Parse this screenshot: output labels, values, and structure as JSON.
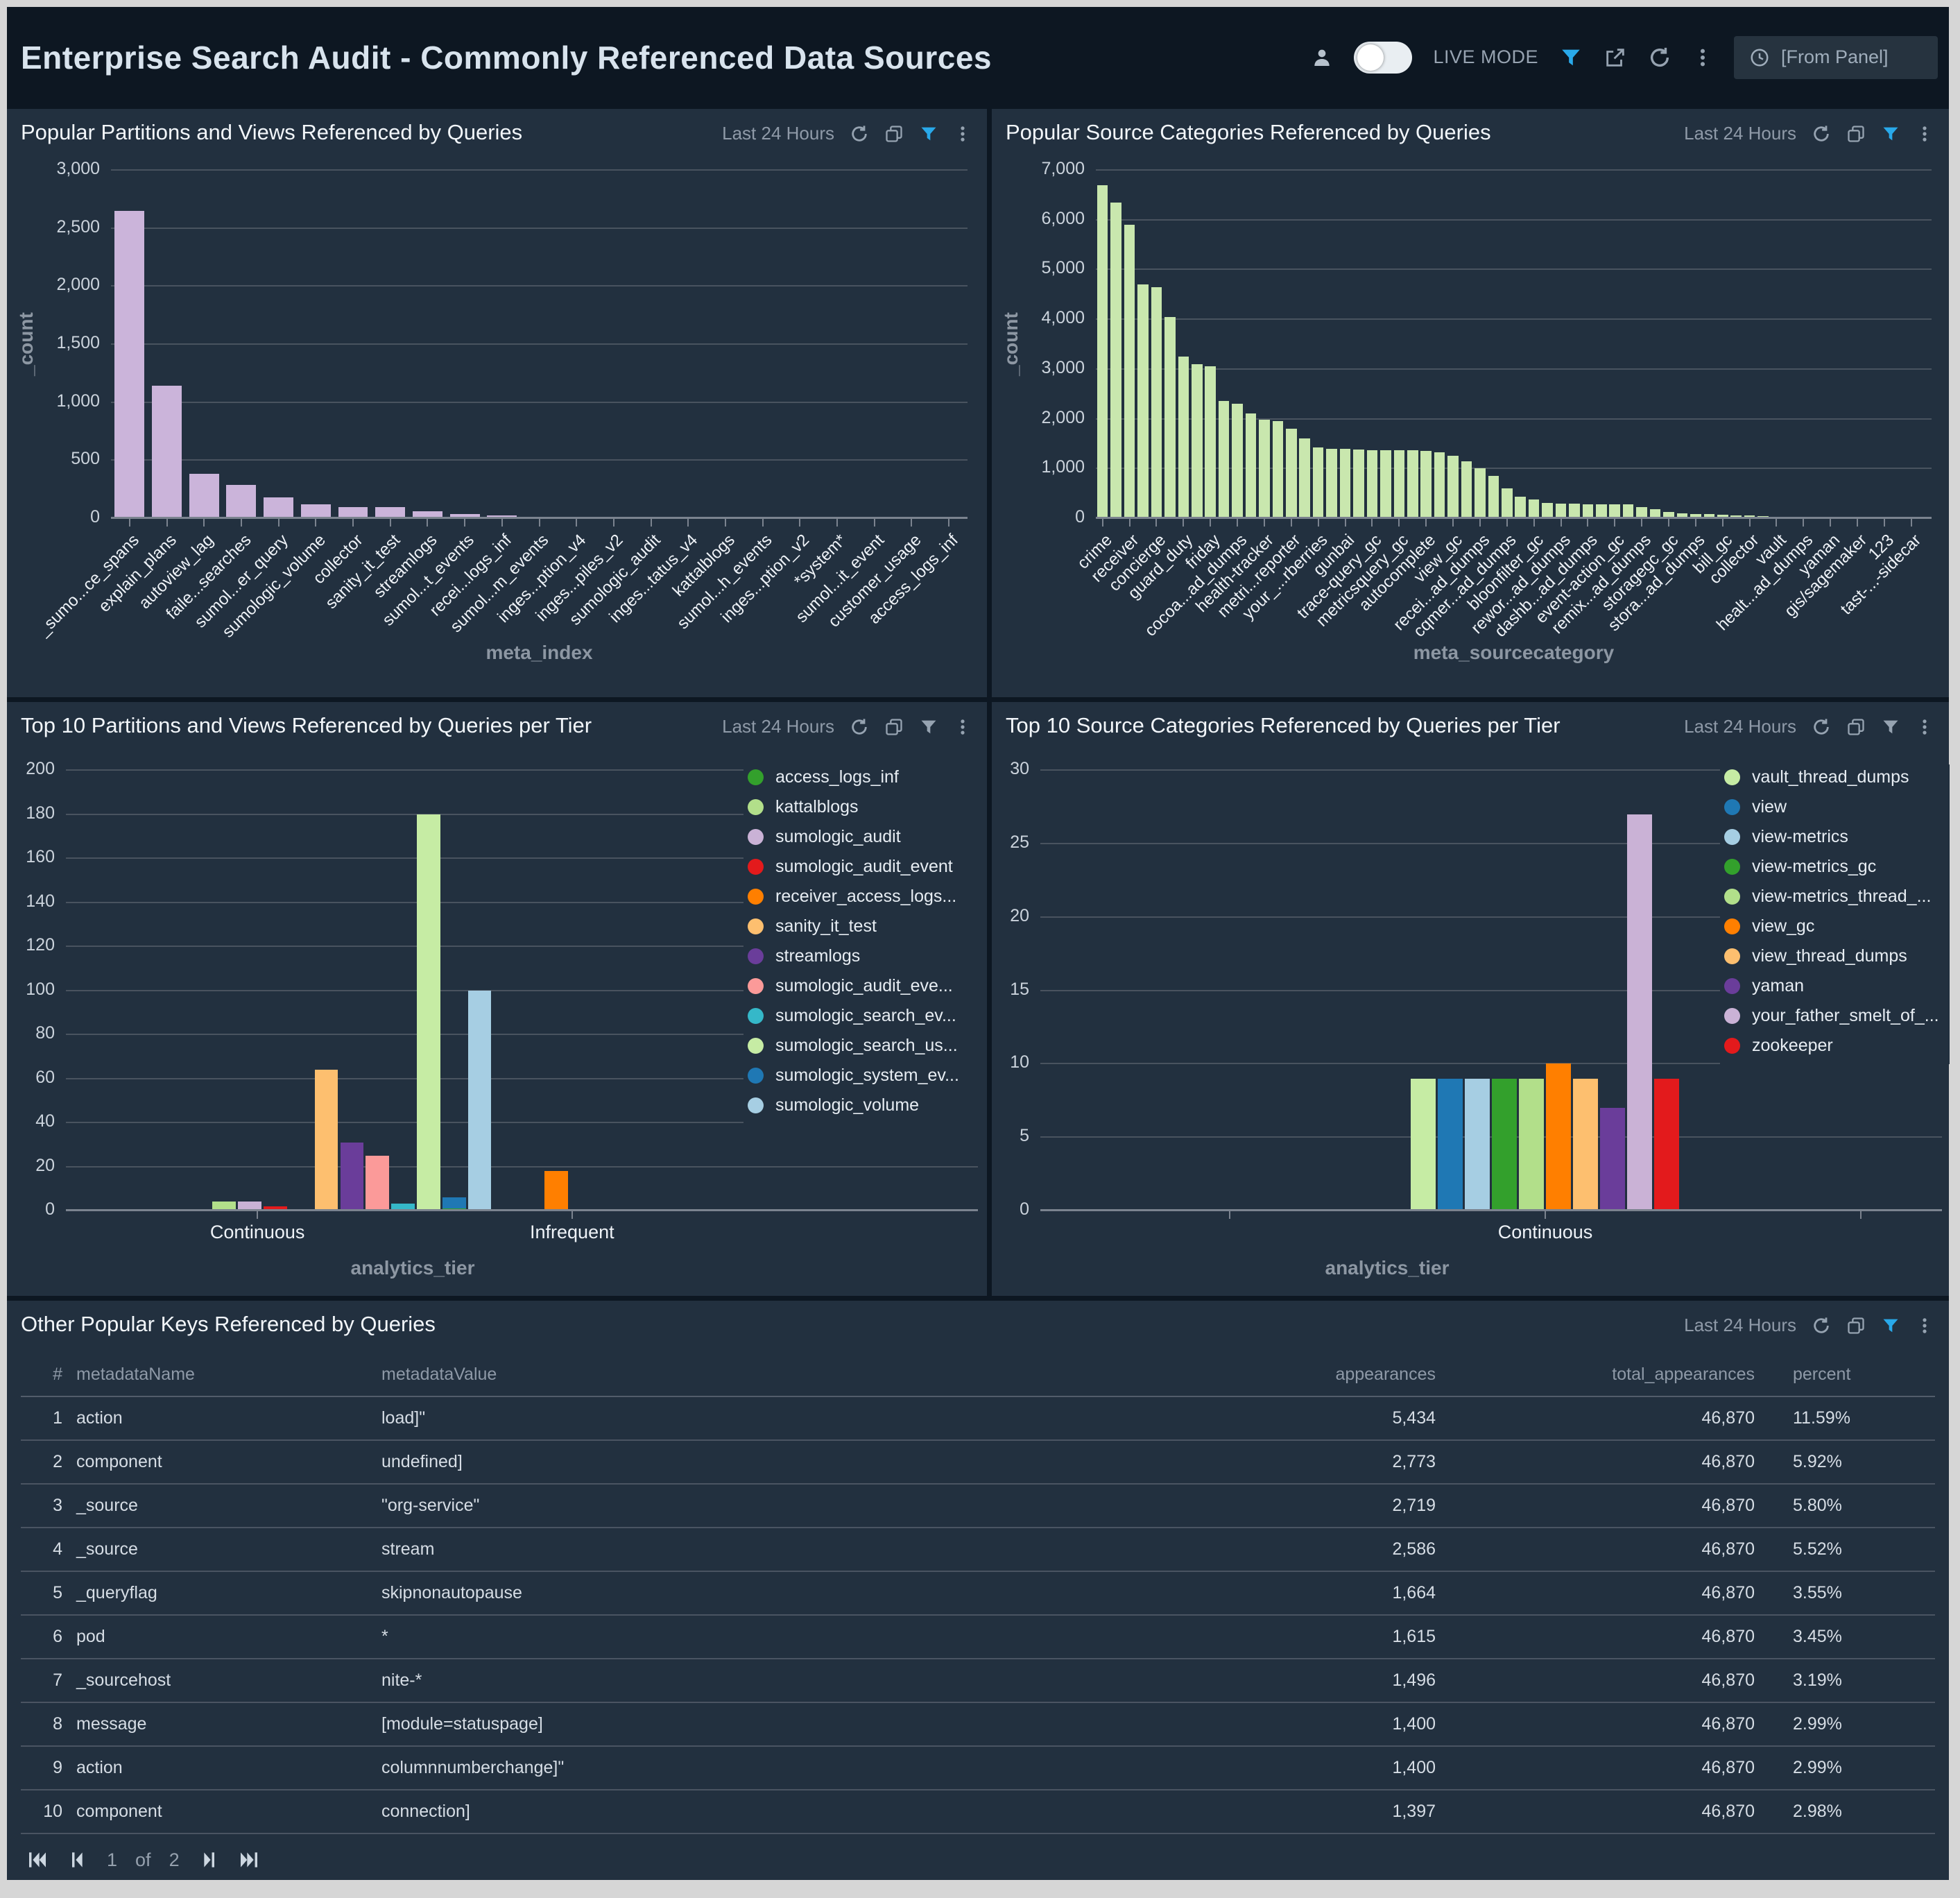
{
  "header": {
    "title": "Enterprise Search Audit - Commonly Referenced Data Sources",
    "live_mode_label": "LIVE MODE",
    "time_range_value": "[From Panel]"
  },
  "panels": {
    "popular_partitions": {
      "title": "Popular Partitions and Views Referenced by Queries",
      "time_range": "Last 24 Hours"
    },
    "popular_source_categories": {
      "title": "Popular Source Categories Referenced by Queries",
      "time_range": "Last 24 Hours"
    },
    "top10_partitions": {
      "title": "Top 10 Partitions and Views Referenced by Queries per Tier",
      "time_range": "Last 24 Hours"
    },
    "top10_source_categories": {
      "title": "Top 10 Source Categories Referenced by Queries per Tier",
      "time_range": "Last 24 Hours"
    },
    "other_keys": {
      "title": "Other Popular Keys Referenced by Queries",
      "time_range": "Last 24 Hours"
    }
  },
  "chart_data": [
    {
      "type": "bar",
      "title": "Popular Partitions and Views Referenced by Queries",
      "xlabel": "meta_index",
      "ylabel": "_count",
      "ylim": [
        0,
        3000
      ],
      "ytick_step": 500,
      "grid": true,
      "bar_color": "#cbb4da",
      "categories": [
        "_sumo...ce_spans",
        "explain_plans",
        "autoview_lag",
        "faile...searches",
        "sumol...er_query",
        "sumologic_volume",
        "collector",
        "sanity_it_test",
        "streamlogs",
        "sumol...t_events",
        "recei...logs_inf",
        "sumol...m_events",
        "inges...ption_v4",
        "inges...piles_v2",
        "sumologic_audit",
        "inges...tatus_v4",
        "kattalblogs",
        "sumol...h_events",
        "inges...ption_v2",
        "*system*",
        "sumol...it_event",
        "customer_usage",
        "access_logs_inf"
      ],
      "values": [
        2650,
        1140,
        380,
        285,
        180,
        120,
        95,
        95,
        60,
        35,
        25,
        15,
        10,
        8,
        7,
        6,
        5,
        5,
        4,
        4,
        3,
        3,
        2
      ]
    },
    {
      "type": "bar",
      "title": "Popular Source Categories Referenced by Queries",
      "xlabel": "meta_sourcecategory",
      "ylabel": "_count",
      "ylim": [
        0,
        7000
      ],
      "ytick_step": 1000,
      "grid": true,
      "bar_color": "#c9e7ae",
      "bars_per_label": 2,
      "categories": [
        "crime",
        "receiver",
        "concierge",
        "guard_duty",
        "friday",
        "cocoa...ad_dumps",
        "health-tracker",
        "metri...reporter",
        "your_...rberries",
        "gunbai",
        "trace-query_gc",
        "metricsquery_gc",
        "autocomplete",
        "view_gc",
        "recei...ad_dumps",
        "cqmer...ad_dumps",
        "bloonfilter_gc",
        "rewor...ad_dumps",
        "dashb...ad_dumps",
        "event-action_gc",
        "remix...ad_dumps",
        "storagegc_gc",
        "stora...ad_dumps",
        "bill_gc",
        "collector",
        "vault",
        "healt...ad_dumps",
        "yaman",
        "gis/sagemaker",
        "123",
        "tast-...-sidecar"
      ],
      "values": [
        6700,
        6350,
        5900,
        4700,
        4650,
        4050,
        3250,
        3100,
        3050,
        2350,
        2300,
        2100,
        1980,
        1950,
        1800,
        1600,
        1420,
        1400,
        1390,
        1380,
        1370,
        1360,
        1360,
        1370,
        1350,
        1330,
        1260,
        1150,
        1000,
        850,
        600,
        430,
        380,
        310,
        300,
        290,
        285,
        285,
        285,
        280,
        230,
        180,
        130,
        100,
        90,
        80,
        70,
        60,
        50,
        40,
        30,
        25,
        20,
        15,
        12,
        10,
        8,
        6,
        5,
        4,
        3,
        2
      ]
    },
    {
      "type": "grouped_bar",
      "title": "Top 10 Partitions and Views Referenced by Queries per Tier",
      "xlabel": "analytics_tier",
      "ylim": [
        0,
        200
      ],
      "ytick_step": 20,
      "grid": true,
      "legend_position": "right",
      "categories": [
        "Continuous",
        "Infrequent"
      ],
      "series": [
        {
          "name": "access_logs_inf",
          "color": "#33a02c",
          "values": [
            0,
            1
          ]
        },
        {
          "name": "kattalblogs",
          "color": "#b2df8a",
          "values": [
            4,
            0
          ]
        },
        {
          "name": "sumologic_audit",
          "color": "#cab2d6",
          "values": [
            4,
            0
          ]
        },
        {
          "name": "sumologic_audit_event",
          "color": "#e31a1c",
          "values": [
            2,
            0
          ]
        },
        {
          "name": "receiver_access_logs...",
          "color": "#ff7f00",
          "values": [
            0,
            18
          ]
        },
        {
          "name": "sanity_it_test",
          "color": "#fdbf6f",
          "values": [
            64,
            0
          ]
        },
        {
          "name": "streamlogs",
          "color": "#6a3d9a",
          "values": [
            31,
            0
          ]
        },
        {
          "name": "sumologic_audit_eve...",
          "color": "#fb9a99",
          "values": [
            25,
            0
          ]
        },
        {
          "name": "sumologic_search_ev...",
          "color": "#35b8c9",
          "values": [
            3,
            0
          ]
        },
        {
          "name": "sumologic_search_us...",
          "color": "#c6eca4",
          "values": [
            180,
            0
          ]
        },
        {
          "name": "sumologic_system_ev...",
          "color": "#1f78b4",
          "values": [
            6,
            0
          ]
        },
        {
          "name": "sumologic_volume",
          "color": "#a6cee3",
          "values": [
            100,
            0
          ]
        }
      ]
    },
    {
      "type": "grouped_bar",
      "title": "Top 10 Source Categories Referenced by Queries per Tier",
      "xlabel": "analytics_tier",
      "ylim": [
        0,
        30
      ],
      "ytick_step": 5,
      "grid": true,
      "legend_position": "right",
      "categories": [
        "Continuous"
      ],
      "series": [
        {
          "name": "vault_thread_dumps",
          "color": "#c6eca4",
          "values": [
            9
          ]
        },
        {
          "name": "view",
          "color": "#1f78b4",
          "values": [
            9
          ]
        },
        {
          "name": "view-metrics",
          "color": "#a6cee3",
          "values": [
            9
          ]
        },
        {
          "name": "view-metrics_gc",
          "color": "#33a02c",
          "values": [
            9
          ]
        },
        {
          "name": "view-metrics_thread_...",
          "color": "#b2df8a",
          "values": [
            9
          ]
        },
        {
          "name": "view_gc",
          "color": "#ff7f00",
          "values": [
            10
          ]
        },
        {
          "name": "view_thread_dumps",
          "color": "#fdbf6f",
          "values": [
            9
          ]
        },
        {
          "name": "yaman",
          "color": "#6a3d9a",
          "values": [
            7
          ]
        },
        {
          "name": "your_father_smelt_of_...",
          "color": "#cab2d6",
          "values": [
            27
          ]
        },
        {
          "name": "zookeeper",
          "color": "#e31a1c",
          "values": [
            9
          ]
        }
      ]
    }
  ],
  "table": {
    "columns": [
      "#",
      "metadataName",
      "metadataValue",
      "appearances",
      "total_appearances",
      "percent"
    ],
    "rows": [
      [
        "1",
        "action",
        "load]\"",
        "5,434",
        "46,870",
        "11.59%"
      ],
      [
        "2",
        "component",
        "undefined]",
        "2,773",
        "46,870",
        "5.92%"
      ],
      [
        "3",
        "_source",
        "\"org-service\"",
        "2,719",
        "46,870",
        "5.80%"
      ],
      [
        "4",
        "_source",
        "stream",
        "2,586",
        "46,870",
        "5.52%"
      ],
      [
        "5",
        "_queryflag",
        "skipnonautopause",
        "1,664",
        "46,870",
        "3.55%"
      ],
      [
        "6",
        "pod",
        "*",
        "1,615",
        "46,870",
        "3.45%"
      ],
      [
        "7",
        "_sourcehost",
        "nite-*",
        "1,496",
        "46,870",
        "3.19%"
      ],
      [
        "8",
        "message",
        "[module=statuspage]",
        "1,400",
        "46,870",
        "2.99%"
      ],
      [
        "9",
        "action",
        "columnnumberchange]\"",
        "1,400",
        "46,870",
        "2.99%"
      ],
      [
        "10",
        "component",
        "connection]",
        "1,397",
        "46,870",
        "2.98%"
      ]
    ]
  },
  "pagination": {
    "page": "1",
    "of_label": "of",
    "total_pages": "2"
  },
  "colors": {
    "accent_blue": "#29a9ea",
    "panel_background": "#22303f",
    "page_background": "#0d1722",
    "bar_lavender": "#cbb4da",
    "bar_pale_green": "#c9e7ae"
  }
}
